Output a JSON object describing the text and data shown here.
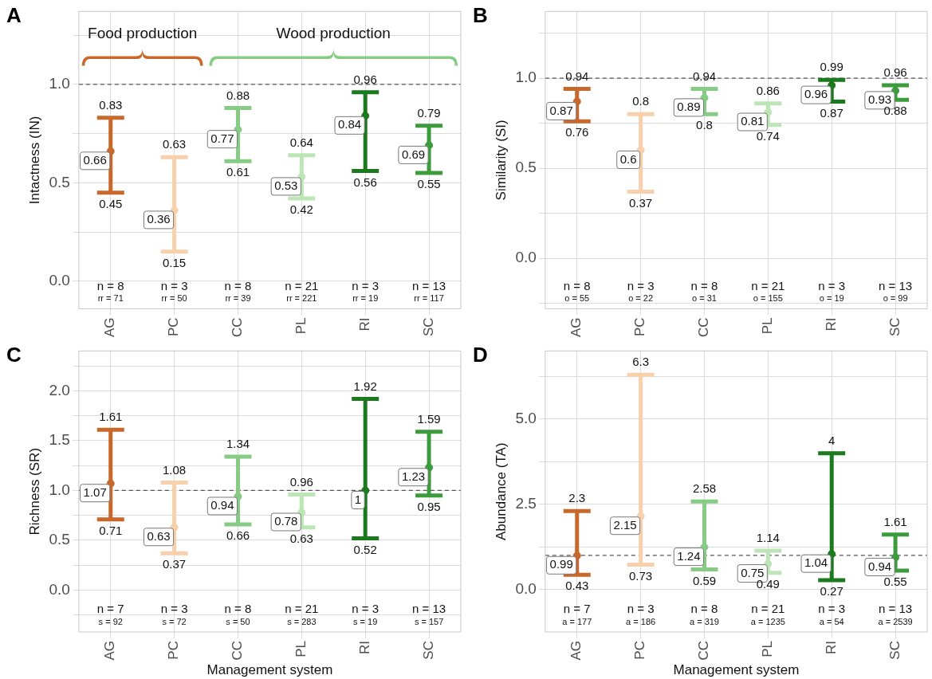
{
  "chart_data": [
    {
      "type": "scatter",
      "title": "A",
      "ylabel": "Intactness (IN)",
      "categories": [
        "AG",
        "PC",
        "CC",
        "PL",
        "RI",
        "SC"
      ],
      "values": [
        0.66,
        0.36,
        0.77,
        0.53,
        0.84,
        0.69
      ],
      "errors": [
        [
          0.45,
          0.83
        ],
        [
          0.15,
          0.63
        ],
        [
          0.61,
          0.88
        ],
        [
          0.42,
          0.64
        ],
        [
          0.56,
          0.96
        ],
        [
          0.55,
          0.79
        ]
      ],
      "colors": [
        "#c8682b",
        "#f8d0ac",
        "#86cc84",
        "#bde6b6",
        "#1a7a1d",
        "#3c9c3c"
      ],
      "data_labels": true,
      "grid": true,
      "marker": "circle",
      "ylim": [
        -0.14,
        1.37
      ],
      "yticks": [
        {
          "value": 0,
          "label": "0.0"
        },
        {
          "value": 0.25,
          "label": null
        },
        0.5,
        {
          "value": 0.75,
          "label": null
        },
        {
          "value": 1,
          "label": "1.0"
        },
        {
          "value": 1.25,
          "label": null
        }
      ],
      "ref_lines": [
        {
          "axis": "y",
          "value": 1,
          "color": "#555555",
          "line_style": "dashed"
        }
      ],
      "annotations": [
        "Food production",
        "Wood production",
        "n = 8",
        "n = 3",
        "n = 8",
        "n = 21",
        "n = 3",
        "n = 13",
        "rr = 71",
        "rr = 50",
        "rr = 39",
        "rr = 221",
        "rr = 19",
        "rr = 117",
        {
          "text": "0.83",
          "x": "AG",
          "y": 0.83
        },
        {
          "text": "0.45",
          "x": "AG",
          "y": 0.45
        },
        {
          "text": "0.63",
          "x": "PC",
          "y": 0.63
        },
        {
          "text": "0.15",
          "x": "PC",
          "y": 0.15
        },
        {
          "text": "0.88",
          "x": "CC",
          "y": 0.88
        },
        {
          "text": "0.61",
          "x": "CC",
          "y": 0.61
        },
        {
          "text": "0.64",
          "x": "PL",
          "y": 0.64
        },
        {
          "text": "0.42",
          "x": "PL",
          "y": 0.42
        },
        {
          "text": "0.96",
          "x": "RI",
          "y": 0.96
        },
        {
          "text": "0.56",
          "x": "RI",
          "y": 0.56
        },
        {
          "text": "0.79",
          "x": "SC",
          "y": 0.79
        },
        {
          "text": "0.55",
          "x": "SC",
          "y": 0.55
        }
      ]
    },
    {
      "type": "scatter",
      "title": "B",
      "ylabel": "Similarity (SI)",
      "categories": [
        "AG",
        "PC",
        "CC",
        "PL",
        "RI",
        "SC"
      ],
      "values": [
        0.87,
        0.6,
        0.89,
        0.81,
        0.96,
        0.93
      ],
      "errors": [
        [
          0.76,
          0.94
        ],
        [
          0.37,
          0.8
        ],
        [
          0.8,
          0.94
        ],
        [
          0.74,
          0.86
        ],
        [
          0.87,
          0.99
        ],
        [
          0.88,
          0.96
        ]
      ],
      "colors": [
        "#c8682b",
        "#f8d0ac",
        "#86cc84",
        "#bde6b6",
        "#1a7a1d",
        "#3c9c3c"
      ],
      "data_labels": true,
      "grid": true,
      "marker": "circle",
      "ylim": [
        -0.28,
        1.37
      ],
      "yticks": [
        {
          "value": -0.25,
          "label": null
        },
        {
          "value": 0,
          "label": "0.0"
        },
        {
          "value": 0.25,
          "label": null
        },
        0.5,
        {
          "value": 0.75,
          "label": null
        },
        {
          "value": 1,
          "label": "1.0"
        },
        {
          "value": 1.25,
          "label": null
        }
      ],
      "ref_lines": [
        {
          "axis": "y",
          "value": 1,
          "color": "#555555",
          "line_style": "dashed"
        }
      ],
      "annotations": [
        "n = 8",
        "n = 3",
        "n = 8",
        "n = 21",
        "n = 3",
        "n = 13",
        "o = 55",
        "o = 22",
        "o = 31",
        "o = 155",
        "o = 19",
        "o = 99",
        {
          "text": "0.94",
          "x": "AG",
          "y": 0.94
        },
        {
          "text": "0.76",
          "x": "AG",
          "y": 0.76
        },
        {
          "text": "0.8",
          "x": "PC",
          "y": 0.8
        },
        {
          "text": "0.37",
          "x": "PC",
          "y": 0.37
        },
        {
          "text": "0.94",
          "x": "CC",
          "y": 0.94
        },
        {
          "text": "0.8",
          "x": "CC",
          "y": 0.8
        },
        {
          "text": "0.86",
          "x": "PL",
          "y": 0.86
        },
        {
          "text": "0.74",
          "x": "PL",
          "y": 0.74
        },
        {
          "text": "0.99",
          "x": "RI",
          "y": 0.99
        },
        {
          "text": "0.87",
          "x": "RI",
          "y": 0.87
        },
        {
          "text": "0.96",
          "x": "SC",
          "y": 0.96
        },
        {
          "text": "0.88",
          "x": "SC",
          "y": 0.88
        }
      ]
    },
    {
      "type": "scatter",
      "title": "C",
      "ylabel": "Richness (SR)",
      "xlabel": "Management system",
      "categories": [
        "AG",
        "PC",
        "CC",
        "PL",
        "RI",
        "SC"
      ],
      "values": [
        1.07,
        0.63,
        0.94,
        0.78,
        1,
        1.23
      ],
      "errors": [
        [
          0.71,
          1.61
        ],
        [
          0.37,
          1.08
        ],
        [
          0.66,
          1.34
        ],
        [
          0.63,
          0.96
        ],
        [
          0.52,
          1.92
        ],
        [
          0.95,
          1.59
        ]
      ],
      "colors": [
        "#c8682b",
        "#f8d0ac",
        "#86cc84",
        "#bde6b6",
        "#1a7a1d",
        "#3c9c3c"
      ],
      "data_labels": true,
      "grid": true,
      "marker": "circle",
      "ylim": [
        -0.42,
        2.4
      ],
      "yticks": [
        {
          "value": -0.25,
          "label": null
        },
        {
          "value": 0,
          "label": "0.0"
        },
        {
          "value": 0.25,
          "label": null
        },
        0.5,
        {
          "value": 0.75,
          "label": null
        },
        {
          "value": 1,
          "label": "1.0"
        },
        {
          "value": 1.25,
          "label": null
        },
        1.5,
        {
          "value": 1.75,
          "label": null
        },
        {
          "value": 2,
          "label": "2.0"
        },
        {
          "value": 2.25,
          "label": null
        }
      ],
      "ref_lines": [
        {
          "axis": "y",
          "value": 1,
          "color": "#555555",
          "line_style": "dashed"
        }
      ],
      "annotations": [
        "n = 7",
        "n = 3",
        "n = 8",
        "n = 21",
        "n = 3",
        "n = 13",
        "s = 92",
        "s = 72",
        "s = 50",
        "s = 283",
        "s = 19",
        "s = 157",
        {
          "text": "1.61",
          "x": "AG",
          "y": 1.61
        },
        {
          "text": "0.71",
          "x": "AG",
          "y": 0.71
        },
        {
          "text": "1.08",
          "x": "PC",
          "y": 1.08
        },
        {
          "text": "0.37",
          "x": "PC",
          "y": 0.37
        },
        {
          "text": "1.34",
          "x": "CC",
          "y": 1.34
        },
        {
          "text": "0.66",
          "x": "CC",
          "y": 0.66
        },
        {
          "text": "0.96",
          "x": "PL",
          "y": 0.96
        },
        {
          "text": "0.63",
          "x": "PL",
          "y": 0.63
        },
        {
          "text": "1.92",
          "x": "RI",
          "y": 1.92
        },
        {
          "text": "0.52",
          "x": "RI",
          "y": 0.52
        },
        {
          "text": "1.59",
          "x": "SC",
          "y": 1.59
        },
        {
          "text": "0.95",
          "x": "SC",
          "y": 0.95
        }
      ]
    },
    {
      "type": "scatter",
      "title": "D",
      "ylabel": "Abundance (TA)",
      "xlabel": "Management system",
      "categories": [
        "AG",
        "PC",
        "CC",
        "PL",
        "RI",
        "SC"
      ],
      "values": [
        0.99,
        2.15,
        1.24,
        0.75,
        1.04,
        0.94
      ],
      "errors": [
        [
          0.43,
          2.3
        ],
        [
          0.73,
          6.3
        ],
        [
          0.59,
          2.58
        ],
        [
          0.49,
          1.14
        ],
        [
          0.27,
          4
        ],
        [
          0.55,
          1.61
        ]
      ],
      "colors": [
        "#c8682b",
        "#f8d0ac",
        "#86cc84",
        "#bde6b6",
        "#1a7a1d",
        "#3c9c3c"
      ],
      "data_labels": true,
      "grid": true,
      "marker": "circle",
      "ylim": [
        -1.25,
        7
      ],
      "yticks": [
        {
          "value": 0,
          "label": "0.0"
        },
        {
          "value": 1.25,
          "label": null
        },
        2.5,
        {
          "value": 3.75,
          "label": null
        },
        {
          "value": 5,
          "label": "5.0"
        },
        {
          "value": 6.25,
          "label": null
        }
      ],
      "ref_lines": [
        {
          "axis": "y",
          "value": 1,
          "color": "#555555",
          "line_style": "dashed"
        }
      ],
      "annotations": [
        "n = 7",
        "n = 3",
        "n = 8",
        "n = 21",
        "n = 3",
        "n = 13",
        "a = 177",
        "a = 186",
        "a = 319",
        "a = 1235",
        "a = 54",
        "a = 2539",
        {
          "text": "2.3",
          "x": "AG",
          "y": 2.3
        },
        {
          "text": "0.43",
          "x": "AG",
          "y": 0.43
        },
        {
          "text": "6.3",
          "x": "PC",
          "y": 6.3
        },
        {
          "text": "0.73",
          "x": "PC",
          "y": 0.73
        },
        {
          "text": "2.58",
          "x": "CC",
          "y": 2.58
        },
        {
          "text": "0.59",
          "x": "CC",
          "y": 0.59
        },
        {
          "text": "1.14",
          "x": "PL",
          "y": 1.14
        },
        {
          "text": "0.49",
          "x": "PL",
          "y": 0.49
        },
        {
          "text": "4",
          "x": "RI",
          "y": 4
        },
        {
          "text": "0.27",
          "x": "RI",
          "y": 0.27
        },
        {
          "text": "1.61",
          "x": "SC",
          "y": 1.61
        },
        {
          "text": "0.55",
          "x": "SC",
          "y": 0.55
        }
      ]
    }
  ]
}
